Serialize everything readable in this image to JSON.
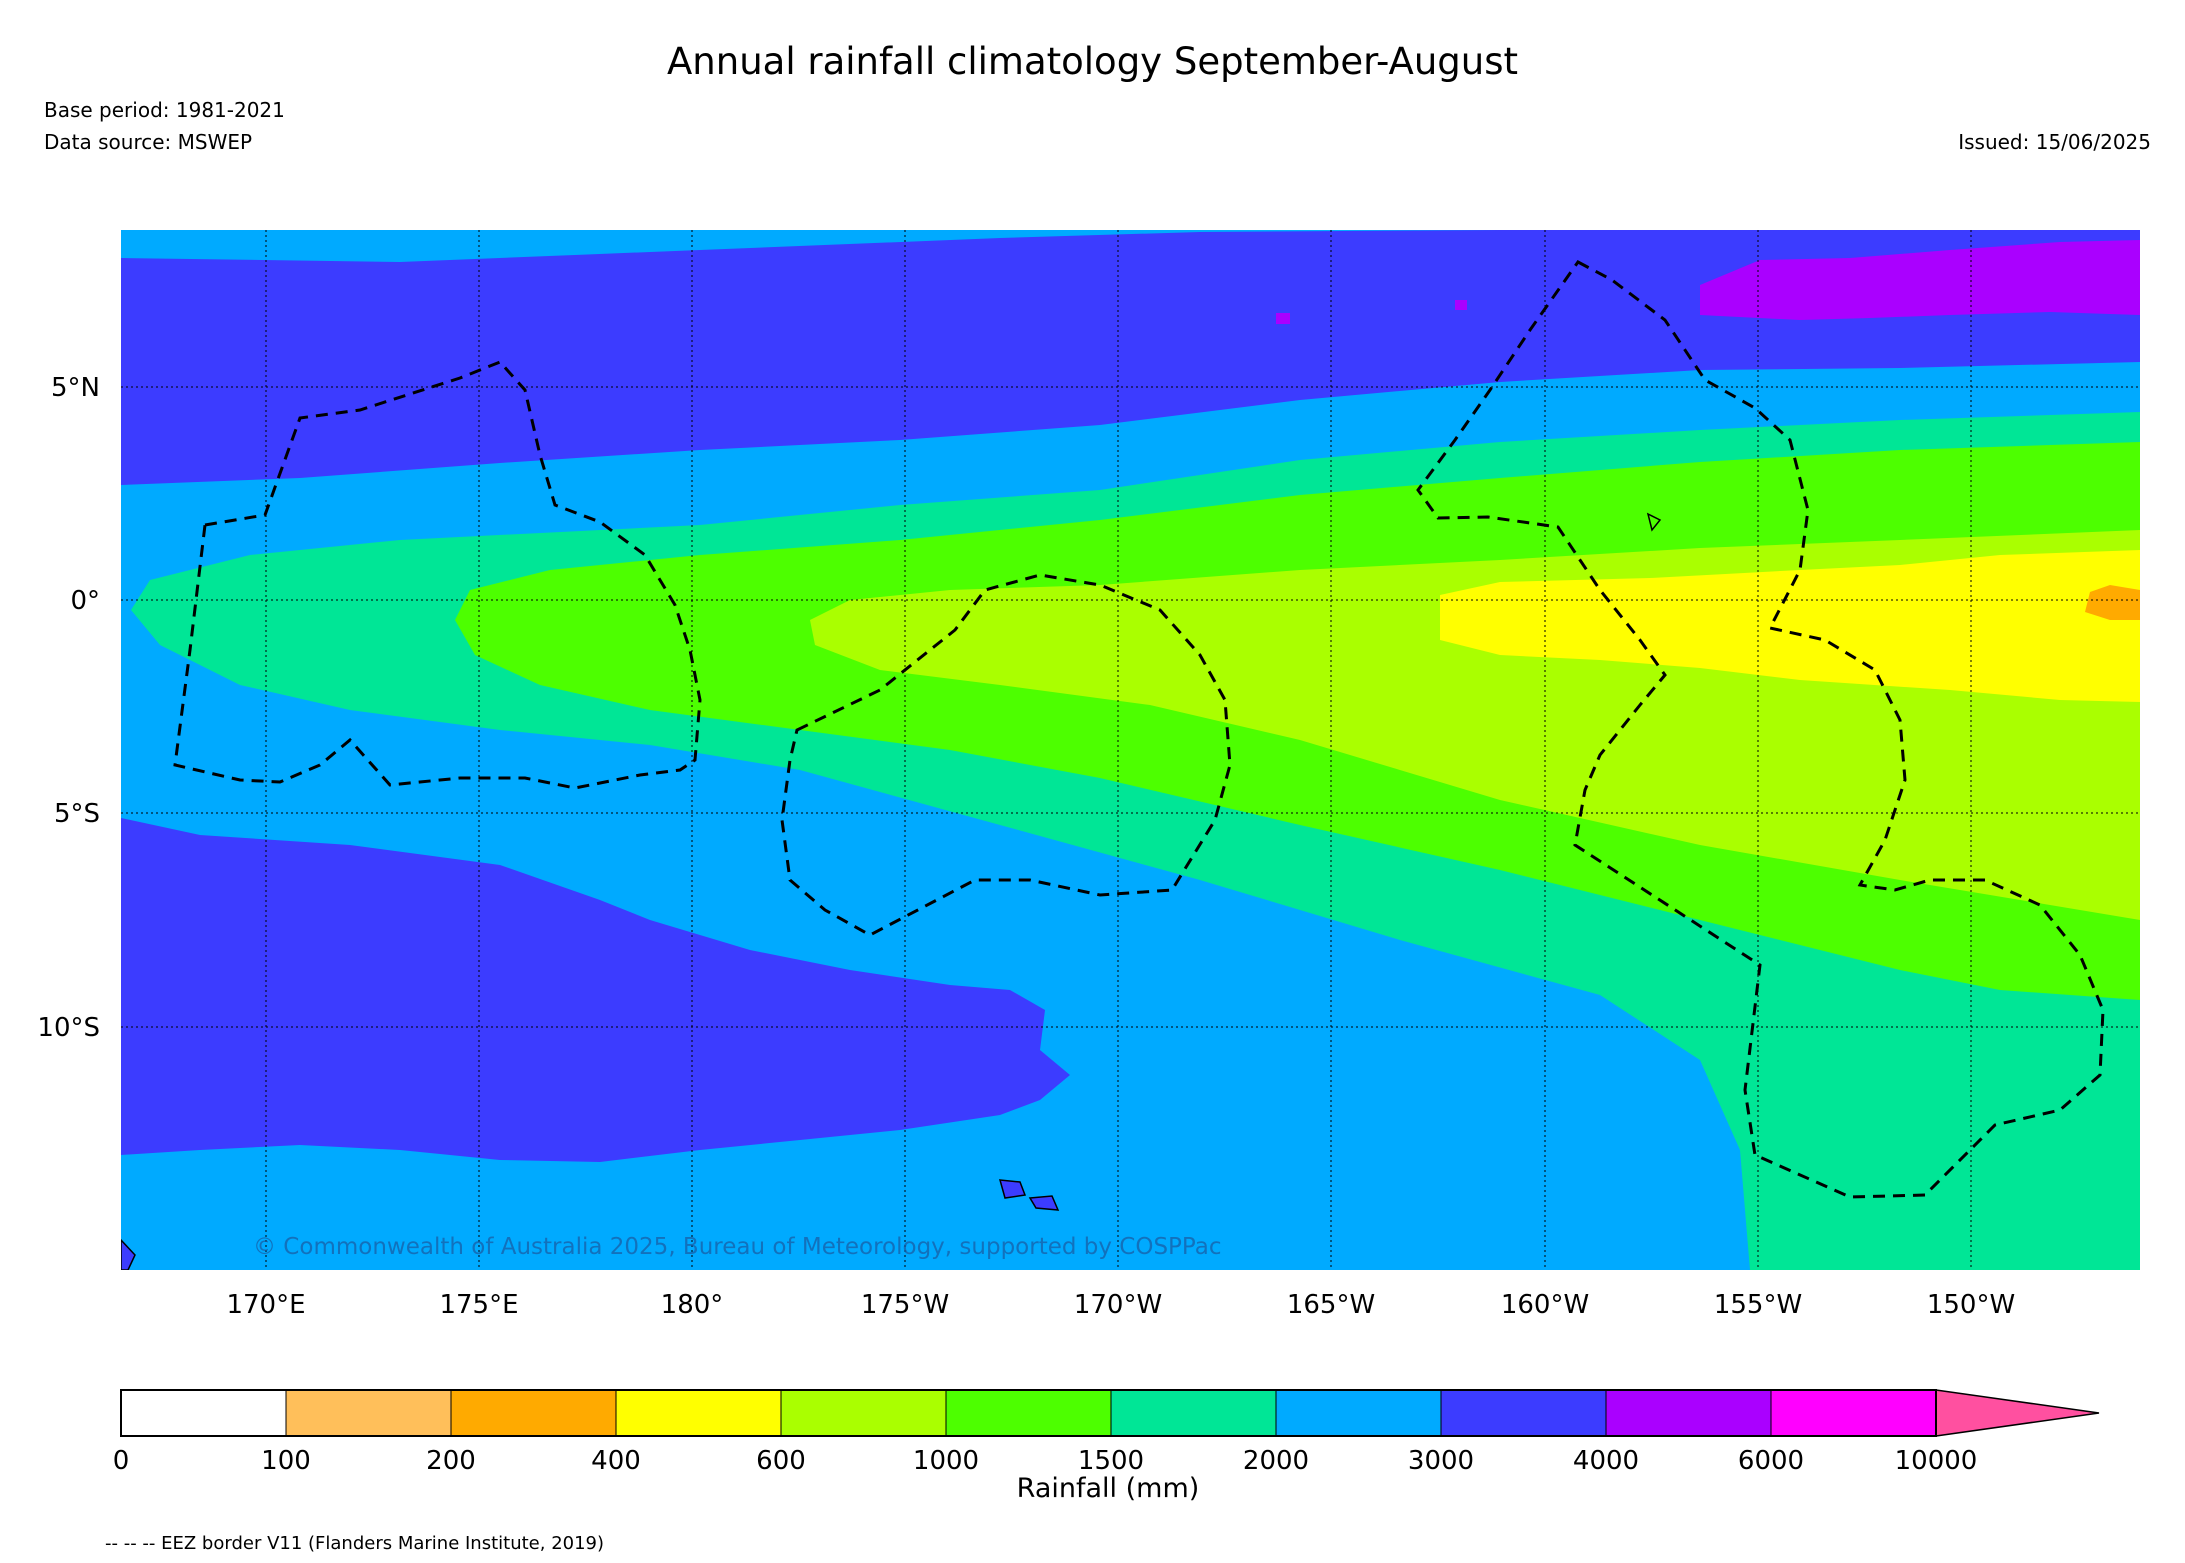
{
  "header": {
    "title": "Annual rainfall climatology September-August",
    "base_period": "Base period: 1981-2021",
    "data_source": "Data source: MSWEP",
    "issued": "Issued: 15/06/2025"
  },
  "map": {
    "copyright": "© Commonwealth of Australia 2025, Bureau of Meteorology, supported by COSPPac",
    "lat_labels": [
      "5°N",
      "0°",
      "5°S",
      "10°S"
    ],
    "lon_labels": [
      "170°E",
      "175°E",
      "180°",
      "175°W",
      "170°W",
      "165°W",
      "160°W",
      "155°W",
      "150°W"
    ],
    "border_color": "#000000"
  },
  "colorbar": {
    "label": "Rainfall (mm)",
    "ticks": [
      "0",
      "100",
      "200",
      "400",
      "600",
      "1000",
      "1500",
      "2000",
      "3000",
      "4000",
      "6000",
      "10000"
    ],
    "colors": [
      "#ffffff",
      "#ffbf5a",
      "#ffaa00",
      "#ffff00",
      "#aaff00",
      "#4dff00",
      "#00e696",
      "#00aaff",
      "#3c3cff",
      "#aa00ff",
      "#ff00ff"
    ],
    "extend_color": "#ff50a0"
  },
  "footnote": "-- -- -- EEZ border V11 (Flanders Marine Institute, 2019)"
}
